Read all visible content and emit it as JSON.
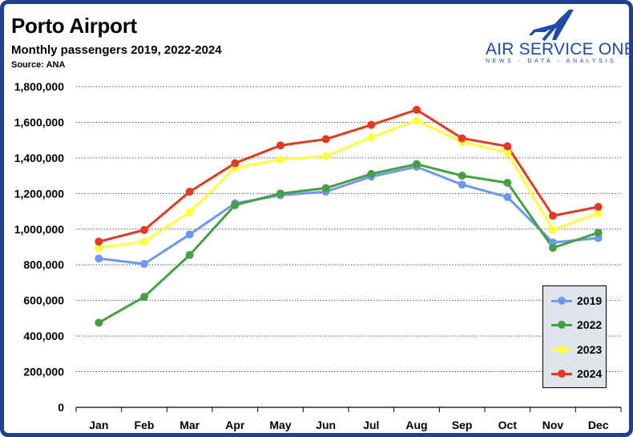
{
  "header": {
    "title": "Porto Airport",
    "subtitle": "Monthly passengers 2019, 2022-2024",
    "source": "Source: ANA"
  },
  "logo": {
    "name": "AIR SERVICE ONE",
    "tagline": "NEWS - DATA - ANALYSIS",
    "icon": "airplane-a-logo-icon",
    "color": "#1e4aa8"
  },
  "chart_data": {
    "type": "line",
    "categories": [
      "Jan",
      "Feb",
      "Mar",
      "Apr",
      "May",
      "Jun",
      "Jul",
      "Aug",
      "Sep",
      "Oct",
      "Nov",
      "Dec"
    ],
    "ylim": [
      0,
      1800000
    ],
    "yticks": [
      0,
      200000,
      400000,
      600000,
      800000,
      1000000,
      1200000,
      1400000,
      1600000,
      1800000
    ],
    "ytick_labels": [
      "0",
      "200,000",
      "400,000",
      "600,000",
      "800,000",
      "1,000,000",
      "1,200,000",
      "1,400,000",
      "1,600,000",
      "1,800,000"
    ],
    "grid": "horizontal dotted",
    "legend_position": "bottom-right",
    "series": [
      {
        "name": "2019",
        "color": "#6f97ef",
        "values": [
          835000,
          805000,
          970000,
          1145000,
          1190000,
          1210000,
          1295000,
          1350000,
          1250000,
          1180000,
          925000,
          950000
        ]
      },
      {
        "name": "2022",
        "color": "#45a043",
        "values": [
          475000,
          620000,
          855000,
          1135000,
          1200000,
          1230000,
          1310000,
          1365000,
          1300000,
          1260000,
          895000,
          980000
        ]
      },
      {
        "name": "2023",
        "color": "#ffff3a",
        "values": [
          895000,
          930000,
          1095000,
          1345000,
          1390000,
          1410000,
          1515000,
          1610000,
          1490000,
          1430000,
          995000,
          1090000
        ]
      },
      {
        "name": "2024",
        "color": "#e23a22",
        "values": [
          930000,
          995000,
          1210000,
          1370000,
          1470000,
          1505000,
          1585000,
          1670000,
          1510000,
          1465000,
          1075000,
          1125000
        ]
      }
    ]
  }
}
